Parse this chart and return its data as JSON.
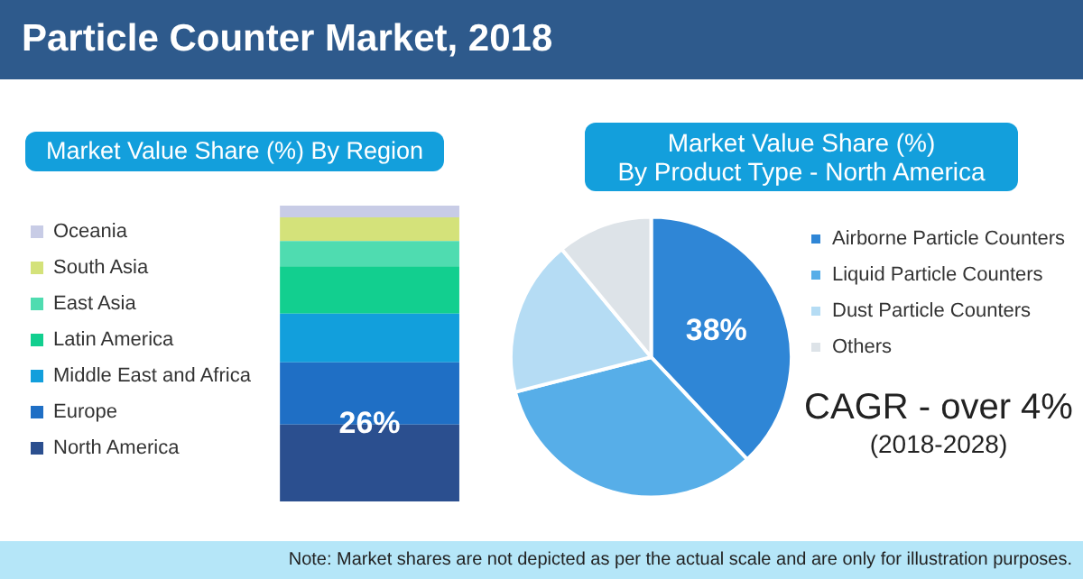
{
  "chart_data": [
    {
      "type": "bar",
      "title": "Particle Counter Market, 2018",
      "subtitle": "Market Value Share (%) By Region",
      "stacked": true,
      "legend": "left",
      "categories": [
        null
      ],
      "series": [
        {
          "name": "North America",
          "color": "#2b4f8f",
          "values": [
            26
          ],
          "value_labels": [
            "26%"
          ]
        },
        {
          "name": "Europe",
          "color": "#1f6fc5",
          "values": [
            21
          ]
        },
        {
          "name": "Middle East and Africa",
          "color": "#129fdc",
          "values": [
            16.5
          ]
        },
        {
          "name": "Latin America",
          "color": "#12cf8f",
          "values": [
            16
          ]
        },
        {
          "name": "East Asia",
          "color": "#4fdcb0",
          "values": [
            8.5
          ]
        },
        {
          "name": "South Asia",
          "color": "#d4e27a",
          "values": [
            8
          ]
        },
        {
          "name": "Oceania",
          "color": "#c8cce6",
          "values": [
            4
          ]
        }
      ]
    },
    {
      "type": "pie",
      "title": "Market Value Share (%) By Product Type - North America",
      "legend": "right",
      "categories": [
        "Airborne Particle Counters",
        "Liquid Particle Counters",
        "Dust Particle Counters",
        "Others"
      ],
      "values": [
        38,
        33,
        18,
        11
      ],
      "value_labels": [
        "38%",
        null,
        null,
        null
      ],
      "colors": [
        "#2f86d6",
        "#57aee8",
        "#b5dcf4",
        "#dde3e8"
      ],
      "annotations": [
        "CAGR - over 4%",
        "(2018-2028)",
        "Note: Market shares are not depicted as per the actual scale and are only for illustration purposes."
      ]
    }
  ]
}
